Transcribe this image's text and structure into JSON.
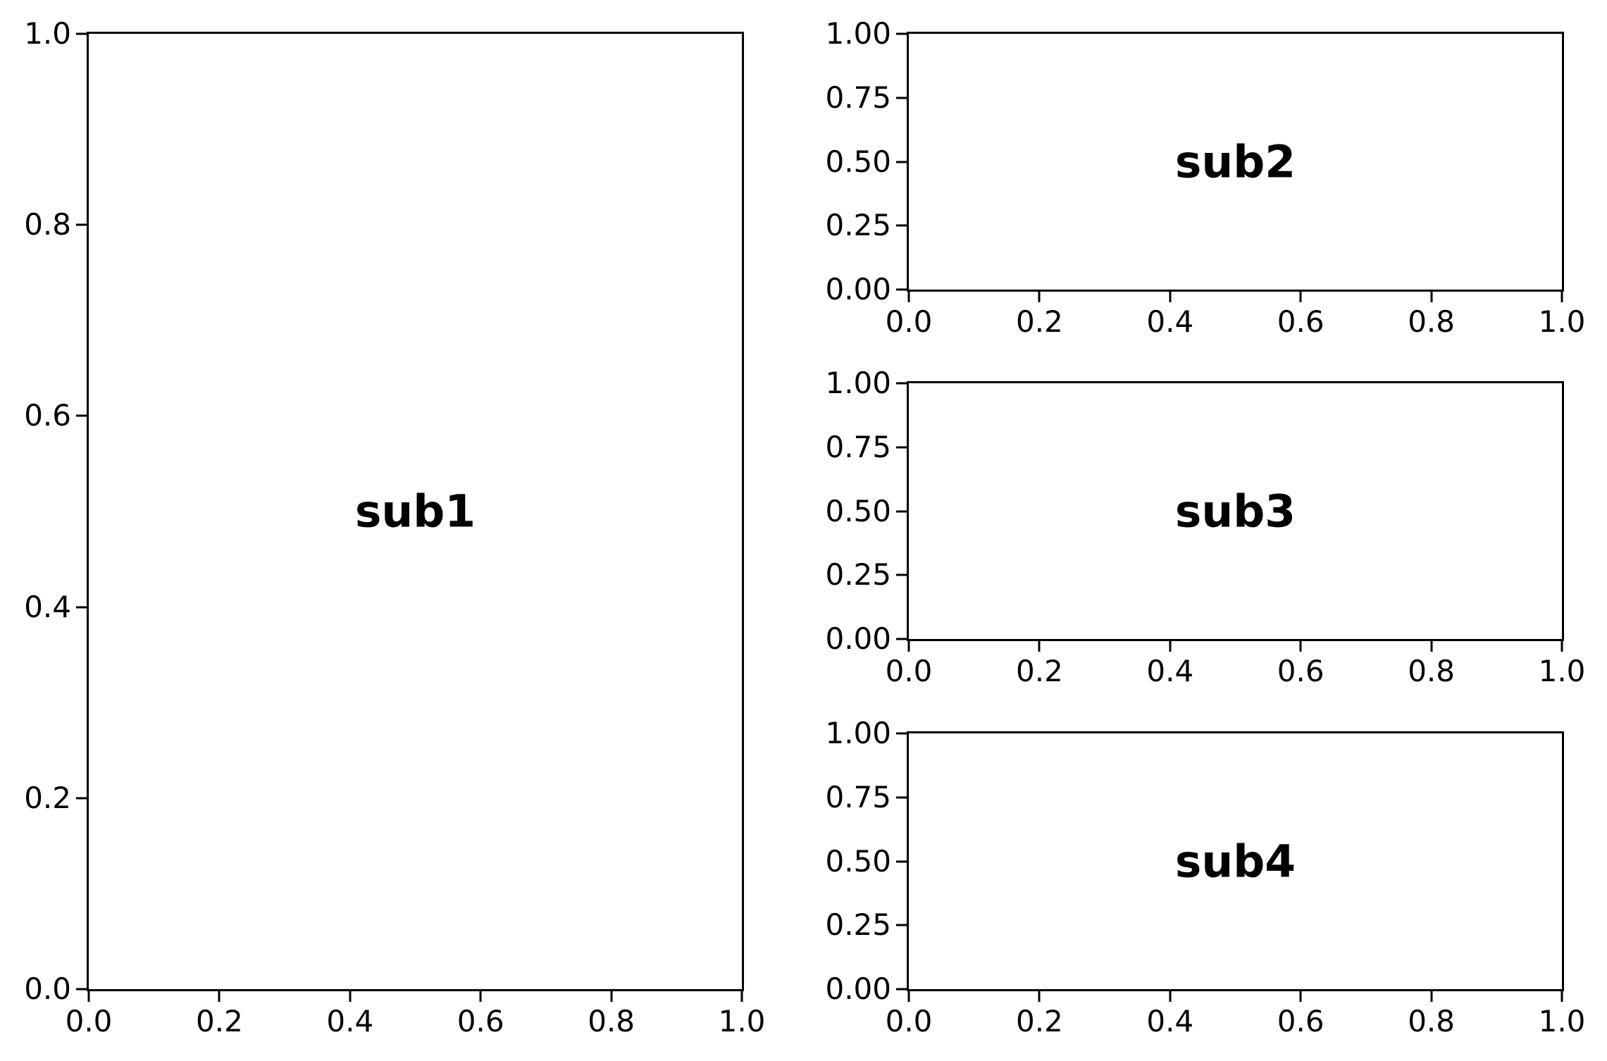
{
  "figure": {
    "background_color": "#ffffff",
    "axis_color": "#000000",
    "text_color": "#000000"
  },
  "chart_data": [
    {
      "type": "empty",
      "label": "sub1",
      "x_ticks": [
        "0.0",
        "0.2",
        "0.4",
        "0.6",
        "0.8",
        "1.0"
      ],
      "y_ticks": [
        "0.0",
        "0.2",
        "0.4",
        "0.6",
        "0.8",
        "1.0"
      ],
      "xlim": [
        0.0,
        1.0
      ],
      "ylim": [
        0.0,
        1.0
      ],
      "grid": false
    },
    {
      "type": "empty",
      "label": "sub2",
      "x_ticks": [
        "0.0",
        "0.2",
        "0.4",
        "0.6",
        "0.8",
        "1.0"
      ],
      "y_ticks": [
        "0.00",
        "0.25",
        "0.50",
        "0.75",
        "1.00"
      ],
      "xlim": [
        0.0,
        1.0
      ],
      "ylim": [
        0.0,
        1.0
      ],
      "grid": false
    },
    {
      "type": "empty",
      "label": "sub3",
      "x_ticks": [
        "0.0",
        "0.2",
        "0.4",
        "0.6",
        "0.8",
        "1.0"
      ],
      "y_ticks": [
        "0.00",
        "0.25",
        "0.50",
        "0.75",
        "1.00"
      ],
      "xlim": [
        0.0,
        1.0
      ],
      "ylim": [
        0.0,
        1.0
      ],
      "grid": false
    },
    {
      "type": "empty",
      "label": "sub4",
      "x_ticks": [
        "0.0",
        "0.2",
        "0.4",
        "0.6",
        "0.8",
        "1.0"
      ],
      "y_ticks": [
        "0.00",
        "0.25",
        "0.50",
        "0.75",
        "1.00"
      ],
      "xlim": [
        0.0,
        1.0
      ],
      "ylim": [
        0.0,
        1.0
      ],
      "grid": false
    }
  ]
}
